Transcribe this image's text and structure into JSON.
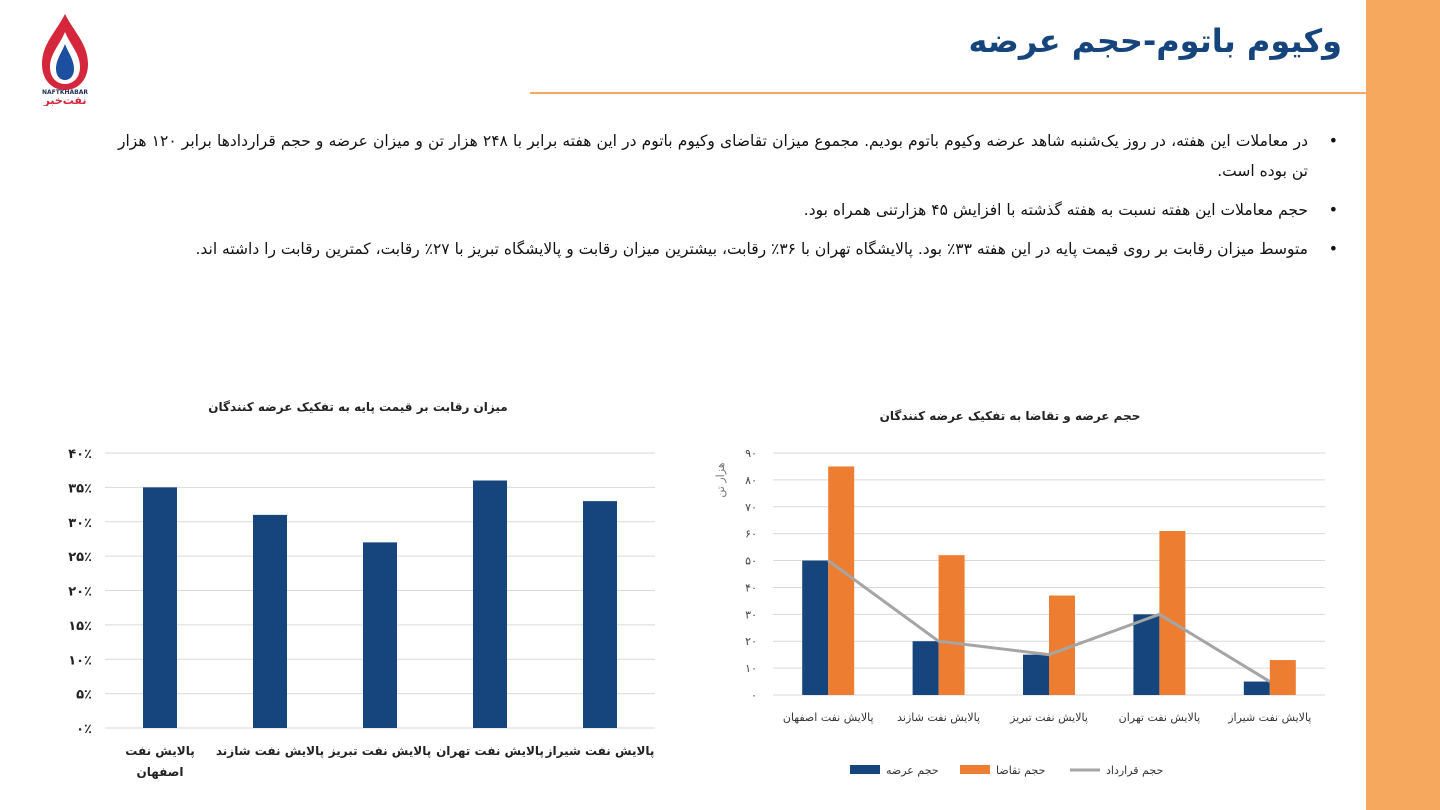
{
  "slide": {
    "title": "وکیوم باتوم-حجم عرضه",
    "logo_text_latin": "NAFTKHABAR",
    "logo_text_fa": "نفت‌خبر",
    "brand_colors": {
      "accent": "#f6a85e",
      "navy": "#16457e",
      "red": "#d6263b"
    }
  },
  "bullets": [
    "در معاملات این هفته، در روز یک‌شنبه شاهد عرضه وکیوم باتوم بودیم. مجموع میزان تقاضای وکیوم باتوم در این هفته برابر با ۲۴۸ هزار تن و میزان عرضه و حجم قراردادها برابر ۱۲۰ هزار تن بوده است.",
    "حجم معاملات این هفته نسبت به هفته گذشته با افزایش ۴۵ هزارتنی همراه بود.",
    "متوسط میزان رقابت بر روی قیمت پایه در این هفته ۳۳٪ بود. پالایشگاه تهران با ۳۶٪ رقابت، بیشترین میزان رقابت و پالایشگاه تبریز با ۲۷٪ رقابت، کمترین رقابت را داشته اند."
  ],
  "chart_data": [
    {
      "type": "bar",
      "title": "میزان رقابت بر قیمت پایه به تفکیک عرضه کنندگان",
      "categories": [
        "پالایش نفت اصفهان",
        "پالایش نفت شازند",
        "پالایش نفت تبریز",
        "پالایش نفت تهران",
        "پالایش نفت شیراز"
      ],
      "category_lines": [
        [
          "پالایش نفت",
          "اصفهان"
        ],
        [
          "پالایش نفت شازند"
        ],
        [
          "پالایش نفت تبریز"
        ],
        [
          "پالایش نفت تهران"
        ],
        [
          "پالایش نفت شیراز"
        ]
      ],
      "values": [
        35,
        31,
        27,
        36,
        33
      ],
      "ylim": [
        0,
        40
      ],
      "yticks": [
        0,
        5,
        10,
        15,
        20,
        25,
        30,
        35,
        40
      ],
      "ytick_labels": [
        "۰٪",
        "۵٪",
        "۱۰٪",
        "۱۵٪",
        "۲۰٪",
        "۲۵٪",
        "۳۰٪",
        "۳۵٪",
        "۴۰٪"
      ],
      "color": "#16457e",
      "grid": true,
      "xlabel": "",
      "ylabel": ""
    },
    {
      "type": "bar",
      "title": "حجم عرضه و تقاضا به تفکیک عرضه کنندگان",
      "categories": [
        "پالایش نفت اصفهان",
        "پالایش نفت شازند",
        "پالایش نفت تبریز",
        "پالایش نفت تهران",
        "پالایش نفت شیراز"
      ],
      "series": [
        {
          "name": "حجم عرضه",
          "kind": "bar",
          "color": "#16457e",
          "values": [
            50,
            20,
            15,
            30,
            5
          ]
        },
        {
          "name": "حجم تقاضا",
          "kind": "bar",
          "color": "#ed7d31",
          "values": [
            85,
            52,
            37,
            61,
            13
          ]
        },
        {
          "name": "حجم قرارداد",
          "kind": "line",
          "color": "#a5a5a5",
          "values": [
            50,
            20,
            15,
            30,
            5
          ]
        }
      ],
      "ylim": [
        0,
        90
      ],
      "yticks": [
        0,
        10,
        20,
        30,
        40,
        50,
        60,
        70,
        80,
        90
      ],
      "ytick_labels": [
        "۰",
        "۱۰",
        "۲۰",
        "۳۰",
        "۴۰",
        "۵۰",
        "۶۰",
        "۷۰",
        "۸۰",
        "۹۰"
      ],
      "ylabel": "هزار تن",
      "xlabel": "",
      "legend": "bottom",
      "grid": true
    }
  ]
}
